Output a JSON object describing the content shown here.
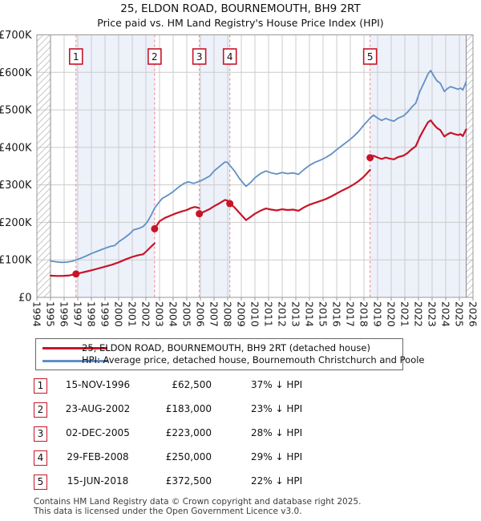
{
  "title": "25, ELDON ROAD, BOURNEMOUTH, BH9 2RT",
  "subtitle": "Price paid vs. HM Land Registry's House Price Index (HPI)",
  "legend": {
    "property_label": "25, ELDON ROAD, BOURNEMOUTH, BH9 2RT (detached house)",
    "hpi_label": "HPI: Average price, detached house, Bournemouth Christchurch and Poole"
  },
  "sales": [
    {
      "n": "1",
      "date": "15-NOV-1996",
      "price": "£62,500",
      "vs_hpi": "37% ↓ HPI",
      "year": 1996.87,
      "value_k": 62.5
    },
    {
      "n": "2",
      "date": "23-AUG-2002",
      "price": "£183,000",
      "vs_hpi": "23% ↓ HPI",
      "year": 2002.64,
      "value_k": 183
    },
    {
      "n": "3",
      "date": "02-DEC-2005",
      "price": "£223,000",
      "vs_hpi": "28% ↓ HPI",
      "year": 2005.92,
      "value_k": 223
    },
    {
      "n": "4",
      "date": "29-FEB-2008",
      "price": "£250,000",
      "vs_hpi": "29% ↓ HPI",
      "year": 2008.16,
      "value_k": 250
    },
    {
      "n": "5",
      "date": "15-JUN-2018",
      "price": "£372,500",
      "vs_hpi": "22% ↓ HPI",
      "year": 2018.45,
      "value_k": 372.5
    }
  ],
  "footer": {
    "line1": "Contains HM Land Registry data © Crown copyright and database right 2025.",
    "line2": "This data is licensed under the Open Government Licence v3.0."
  },
  "colors": {
    "property_line": "#c81428",
    "hpi_line": "#6090c4",
    "sale_dashed": "#f57e7e",
    "ownership_band": "#edf1fa",
    "grid": "#cccccc",
    "plot_border": "#999999",
    "hatch": "#b5b5b5",
    "hatch_edge": "#8c8c8c",
    "tick_text": "#1a1a1a"
  },
  "chart_data": {
    "type": "line",
    "x_axis": {
      "min": 1994,
      "max": 2026,
      "tick_step_years": 1
    },
    "y_axis": {
      "min_k": 0,
      "max_k": 700,
      "tick_labels": [
        "£0",
        "£100K",
        "£200K",
        "£300K",
        "£400K",
        "£500K",
        "£600K",
        "£700K"
      ]
    },
    "no_data_regions": [
      [
        1994,
        1995.0
      ],
      [
        2025.5,
        2026
      ]
    ],
    "ownership_bands": [
      [
        1996.87,
        2002.64
      ],
      [
        2005.92,
        2008.16
      ],
      [
        2018.45,
        2025.5
      ]
    ],
    "series": [
      {
        "name": "25, ELDON ROAD, BOURNEMOUTH, BH9 2RT (detached house)",
        "unit": "GBP thousands",
        "segments": [
          [
            [
              1995,
              58
            ],
            [
              1995.5,
              57
            ],
            [
              1996,
              57.5
            ],
            [
              1996.4,
              58.5
            ],
            [
              1996.87,
              62.5
            ],
            [
              1997.3,
              66
            ],
            [
              1997.7,
              69.5
            ],
            [
              1998.1,
              73
            ],
            [
              1998.6,
              78
            ],
            [
              1999.1,
              83
            ],
            [
              1999.5,
              87
            ],
            [
              2000,
              93.5
            ],
            [
              2000.5,
              101
            ],
            [
              2001,
              108
            ],
            [
              2001.4,
              112
            ],
            [
              2001.8,
              115
            ],
            [
              2002.1,
              125
            ],
            [
              2002.4,
              136
            ],
            [
              2002.64,
              144
            ]
          ],
          [
            [
              2002.64,
              183
            ],
            [
              2003,
              203
            ],
            [
              2003.4,
              212
            ],
            [
              2003.8,
              218
            ],
            [
              2004.2,
              224
            ],
            [
              2004.6,
              229
            ],
            [
              2005,
              233
            ],
            [
              2005.3,
              238
            ],
            [
              2005.6,
              241
            ],
            [
              2005.92,
              238
            ]
          ],
          [
            [
              2005.92,
              223
            ],
            [
              2006.3,
              229
            ],
            [
              2006.7,
              236
            ],
            [
              2007,
              243
            ],
            [
              2007.4,
              251
            ],
            [
              2007.8,
              260
            ],
            [
              2008,
              258
            ],
            [
              2008.16,
              252
            ]
          ],
          [
            [
              2008.16,
              250
            ],
            [
              2008.5,
              240
            ],
            [
              2008.9,
              224
            ],
            [
              2009.35,
              206
            ],
            [
              2009.7,
              215
            ],
            [
              2010,
              223
            ],
            [
              2010.4,
              231
            ],
            [
              2010.8,
              237
            ],
            [
              2011.2,
              234
            ],
            [
              2011.6,
              232
            ],
            [
              2012,
              235
            ],
            [
              2012.4,
              233
            ],
            [
              2012.8,
              234
            ],
            [
              2013.2,
              231
            ],
            [
              2013.6,
              240
            ],
            [
              2014,
              247
            ],
            [
              2014.4,
              252
            ],
            [
              2014.8,
              257
            ],
            [
              2015.2,
              262
            ],
            [
              2015.6,
              269
            ],
            [
              2016,
              277
            ],
            [
              2016.4,
              285
            ],
            [
              2016.8,
              292
            ],
            [
              2017.2,
              300
            ],
            [
              2017.6,
              310
            ],
            [
              2018,
              322
            ],
            [
              2018.45,
              340
            ]
          ],
          [
            [
              2018.45,
              372.5
            ],
            [
              2018.7,
              378
            ],
            [
              2019,
              373
            ],
            [
              2019.3,
              369
            ],
            [
              2019.6,
              373
            ],
            [
              2019.9,
              370
            ],
            [
              2020.2,
              368
            ],
            [
              2020.5,
              374
            ],
            [
              2020.9,
              378
            ],
            [
              2021.2,
              385
            ],
            [
              2021.5,
              395
            ],
            [
              2021.8,
              403
            ],
            [
              2022.1,
              428
            ],
            [
              2022.4,
              448
            ],
            [
              2022.7,
              467
            ],
            [
              2022.9,
              472
            ],
            [
              2023.1,
              462
            ],
            [
              2023.35,
              452
            ],
            [
              2023.6,
              446
            ],
            [
              2023.9,
              429
            ],
            [
              2024.1,
              434
            ],
            [
              2024.35,
              439
            ],
            [
              2024.6,
              436
            ],
            [
              2024.9,
              433
            ],
            [
              2025.1,
              435
            ],
            [
              2025.25,
              430
            ],
            [
              2025.5,
              448
            ]
          ]
        ]
      },
      {
        "name": "HPI: Average price, detached house, Bournemouth Christchurch and Poole",
        "unit": "GBP thousands",
        "points": [
          [
            1995,
            97
          ],
          [
            1995.4,
            95
          ],
          [
            1995.8,
            93.5
          ],
          [
            1996.2,
            94
          ],
          [
            1996.6,
            96.5
          ],
          [
            1996.87,
            100
          ],
          [
            1997.2,
            104
          ],
          [
            1997.6,
            110
          ],
          [
            1998,
            117
          ],
          [
            1998.5,
            124
          ],
          [
            1999,
            131
          ],
          [
            1999.4,
            136
          ],
          [
            1999.7,
            138
          ],
          [
            2000,
            148
          ],
          [
            2000.4,
            158
          ],
          [
            2000.8,
            169
          ],
          [
            2001.1,
            180
          ],
          [
            2001.5,
            184
          ],
          [
            2001.8,
            189
          ],
          [
            2002.1,
            201
          ],
          [
            2002.4,
            220
          ],
          [
            2002.64,
            238
          ],
          [
            2002.9,
            251
          ],
          [
            2003.2,
            264
          ],
          [
            2003.6,
            272
          ],
          [
            2004,
            282
          ],
          [
            2004.4,
            294
          ],
          [
            2004.8,
            304
          ],
          [
            2005.1,
            308
          ],
          [
            2005.5,
            304
          ],
          [
            2005.92,
            309
          ],
          [
            2006.3,
            316
          ],
          [
            2006.7,
            324
          ],
          [
            2007,
            337
          ],
          [
            2007.4,
            349
          ],
          [
            2007.8,
            361
          ],
          [
            2008,
            360
          ],
          [
            2008.16,
            352
          ],
          [
            2008.5,
            337
          ],
          [
            2008.9,
            315
          ],
          [
            2009.35,
            296
          ],
          [
            2009.7,
            307
          ],
          [
            2010,
            319
          ],
          [
            2010.4,
            330
          ],
          [
            2010.8,
            337
          ],
          [
            2011.2,
            332
          ],
          [
            2011.6,
            329
          ],
          [
            2012,
            333
          ],
          [
            2012.4,
            330
          ],
          [
            2012.8,
            332
          ],
          [
            2013.2,
            328
          ],
          [
            2013.6,
            341
          ],
          [
            2014,
            352
          ],
          [
            2014.4,
            360
          ],
          [
            2014.8,
            366
          ],
          [
            2015.2,
            373
          ],
          [
            2015.6,
            382
          ],
          [
            2016,
            394
          ],
          [
            2016.4,
            405
          ],
          [
            2016.8,
            416
          ],
          [
            2017.2,
            428
          ],
          [
            2017.6,
            442
          ],
          [
            2018,
            460
          ],
          [
            2018.45,
            478
          ],
          [
            2018.7,
            486
          ],
          [
            2019,
            478
          ],
          [
            2019.3,
            472
          ],
          [
            2019.6,
            477
          ],
          [
            2019.9,
            473
          ],
          [
            2020.2,
            470
          ],
          [
            2020.5,
            478
          ],
          [
            2020.9,
            484
          ],
          [
            2021.2,
            494
          ],
          [
            2021.5,
            507
          ],
          [
            2021.8,
            518
          ],
          [
            2022.1,
            549
          ],
          [
            2022.4,
            572
          ],
          [
            2022.7,
            596
          ],
          [
            2022.9,
            605
          ],
          [
            2023.1,
            592
          ],
          [
            2023.35,
            578
          ],
          [
            2023.6,
            571
          ],
          [
            2023.9,
            549
          ],
          [
            2024.1,
            556
          ],
          [
            2024.35,
            562
          ],
          [
            2024.6,
            559
          ],
          [
            2024.9,
            555
          ],
          [
            2025.1,
            558
          ],
          [
            2025.25,
            553
          ],
          [
            2025.5,
            575
          ]
        ]
      }
    ]
  }
}
